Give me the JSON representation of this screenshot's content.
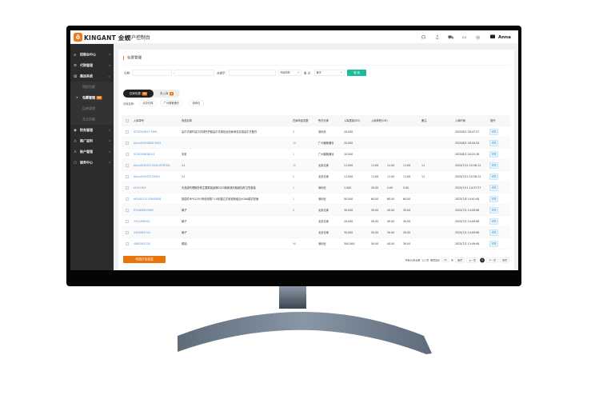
{
  "header": {
    "brand": "KINGANT 金蚁",
    "console": "用户控制台",
    "user": "Anna",
    "icons": [
      "headset-icon",
      "bell-icon",
      "cart-icon",
      "monitor-icon",
      "compass-icon"
    ]
  },
  "sidebar": {
    "items": [
      {
        "label": "控制台中心",
        "icon": "home-icon",
        "arrow": "›"
      },
      {
        "label": "代购管理",
        "icon": "gear-icon",
        "arrow": "›"
      },
      {
        "label": "集运系统",
        "icon": "doc-icon",
        "arrow": "⌄"
      },
      {
        "label": "预报包裹",
        "sub": true
      },
      {
        "label": "包裹管理",
        "sub": true,
        "active": true,
        "badge": "52"
      },
      {
        "label": "运单管理",
        "sub": true
      },
      {
        "label": "无主包裹",
        "sub": true
      },
      {
        "label": "财务管理",
        "icon": "finance-icon",
        "arrow": "›"
      },
      {
        "label": "推广返利",
        "icon": "user-icon",
        "arrow": "›"
      },
      {
        "label": "账户管理",
        "icon": "user-icon",
        "arrow": "›"
      },
      {
        "label": "服务中心",
        "icon": "service-icon",
        "arrow": "›"
      }
    ]
  },
  "main": {
    "title": "包裹管理",
    "filters": {
      "date_label": "日期:",
      "sep": "-",
      "keyword_label": "关键字:",
      "match": "完全匹配",
      "remark_label": "备 注:",
      "remark_select": "备注",
      "search": "搜 索"
    },
    "tabs": [
      {
        "label": "在库包裹",
        "badge": "26"
      },
      {
        "label": "未入库",
        "badge": "0"
      }
    ],
    "warehouse_label": "仓库名称:",
    "warehouses": [
      "北京仓库",
      "广州钢管通仓",
      "深圳仓"
    ],
    "columns": [
      "入库单号",
      "商品名称",
      "在库商品总数",
      "所在仓库",
      "入库重量(KG)",
      "入库体积(CM)",
      "",
      "",
      "备注",
      "入库时间",
      "操作"
    ],
    "rows": [
      [
        "SF20250827 9901",
        "高尔夫球杆高尔夫球杆护套高尔夫球包运动休闲包实用高尔夫配件",
        "6",
        "深圳仓",
        "20.000",
        "",
        "",
        "",
        "",
        "2025/8/2 18:47:27"
      ],
      [
        "Anna20250828 0002",
        "",
        "28",
        "广州钢管通仓",
        "20.000",
        "",
        "",
        "",
        "",
        "2025/8/2 18:44:34"
      ],
      [
        "SF20250828011",
        "手机",
        "1",
        "广州钢管通仓",
        "10.000",
        "",
        "",
        "",
        "",
        "2025/8/2 18:25:28"
      ],
      [
        "Anna2025071200019787​84",
        "11",
        "10",
        "北京仓库",
        "11.000",
        "11.00",
        "11.00",
        "11.00",
        "11",
        "2025/7/12 15:36:12"
      ],
      [
        "Anna202507120001",
        "11",
        "5",
        "北京仓库",
        "11.000",
        "11.00",
        "11.00",
        "11.00",
        "11",
        "2025/7/12 15:36:12"
      ],
      [
        "ef121304",
        "天品康代理服务商主要着装品牌2025新款潮天鹅绒加厚卫衣套装",
        "1",
        "深圳仓",
        "1.000",
        "20.00",
        "2.00",
        "5.00",
        "",
        "2025/7/11 14:37:37"
      ],
      [
        "ef544012135645858",
        "接插件HP4125G有线电视? 1U机箱立式电视柜组合4G8A模式双面",
        "1",
        "深圳仓",
        "50.000",
        "60.00",
        "60.00",
        "60.00",
        "",
        "2025/7/8 14:01:08"
      ],
      [
        "875469853985",
        "裤子",
        "8",
        "北京仓库",
        "30.000",
        "55.00",
        "45.00",
        "35.00",
        "",
        "2025/7/2 14:09:08"
      ],
      [
        "7524396052",
        "裤子",
        "",
        "北京仓库",
        "20.000",
        "50.00",
        "40.00",
        "30.00",
        "",
        "2025/7/2 14:09:08"
      ],
      [
        "2541895724",
        "裤子",
        "",
        "北京仓库",
        "30.000",
        "50.00",
        "30.00",
        "20.00",
        "",
        "2025/7/2 14:09:08"
      ],
      [
        "4563263128",
        "帽袖",
        "98",
        "深圳仓",
        "300.000",
        "50.00",
        "40.00",
        "30.00",
        "",
        "2025/7/2 13:49:08"
      ]
    ],
    "detail_label": "详情",
    "apply_label": "申请打包发货",
    "pager": {
      "total": "共有26条记录",
      "pages": "1/1 页",
      "per_page_label": "每页显示",
      "per_page": "50",
      "unit": "条",
      "first": "首页",
      "prev": "上一页",
      "current": "1",
      "next": "下一页",
      "last": "尾页"
    }
  },
  "colors": {
    "accent": "#f07a1a",
    "search": "#1abc9c",
    "sidebar": "#2c2c2c",
    "link": "#4a8fd8"
  }
}
